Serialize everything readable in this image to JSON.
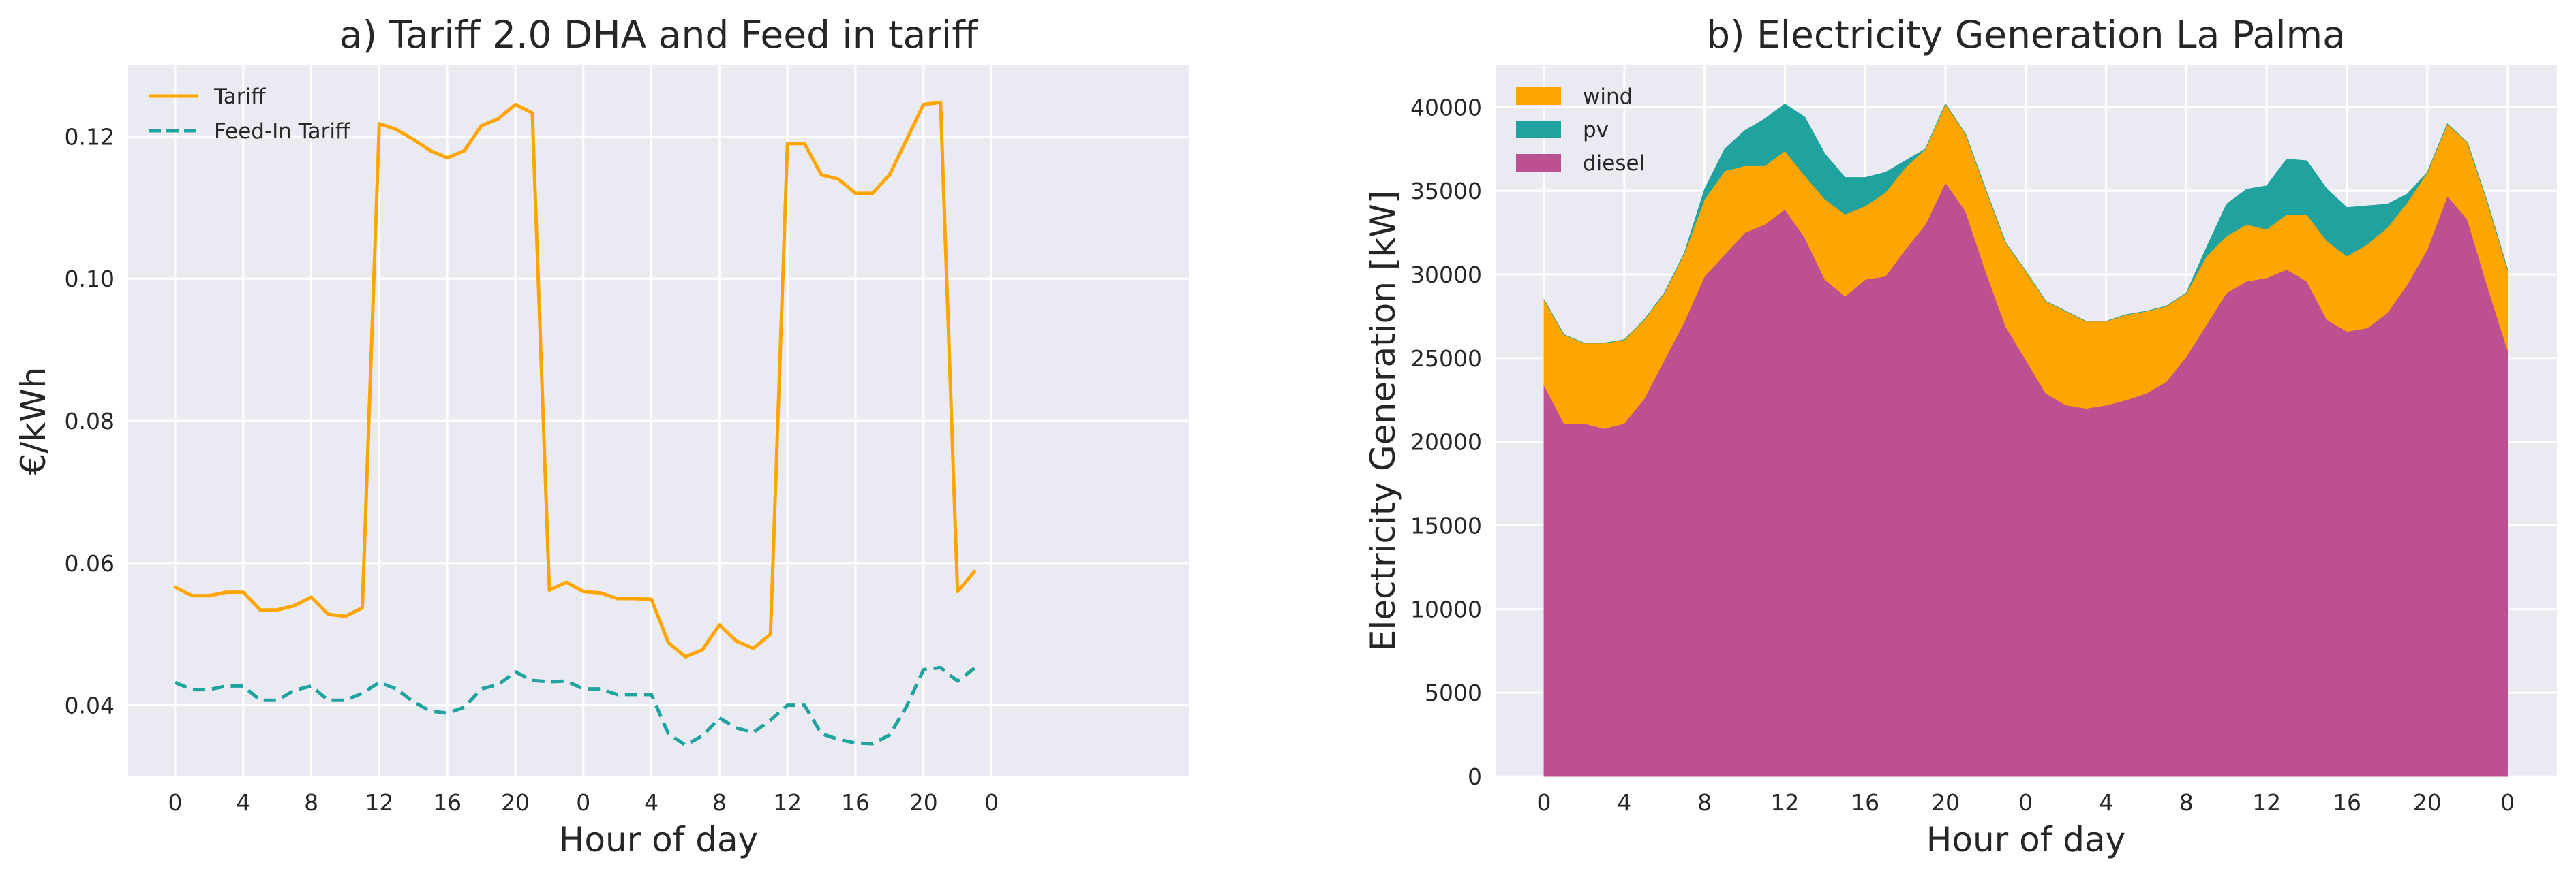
{
  "chart_data": [
    {
      "type": "line",
      "title": "a) Tariff 2.0 DHA and Feed in tariff",
      "xlabel": "Hour of day",
      "ylabel": "€/kWh",
      "xticks": [
        "0",
        "4",
        "8",
        "12",
        "16",
        "20",
        "0",
        "4",
        "8",
        "12",
        "16",
        "20",
        "0"
      ],
      "ylim": [
        0.03,
        0.13
      ],
      "yticks": [
        "0.04",
        "0.06",
        "0.08",
        "0.10",
        "0.12"
      ],
      "legend_position": "top-left",
      "series": [
        {
          "name": "Tariff",
          "color": "#FFA500",
          "style": "solid",
          "values": [
            0.0566,
            0.0554,
            0.0554,
            0.0559,
            0.0559,
            0.0534,
            0.0534,
            0.054,
            0.0552,
            0.0528,
            0.0525,
            0.0537,
            0.1218,
            0.121,
            0.1196,
            0.118,
            0.117,
            0.118,
            0.1215,
            0.1225,
            0.1245,
            0.1233,
            0.0562,
            0.0573,
            0.056,
            0.0558,
            0.055,
            0.055,
            0.0549,
            0.0488,
            0.0468,
            0.0478,
            0.0513,
            0.049,
            0.048,
            0.05,
            0.119,
            0.119,
            0.1146,
            0.114,
            0.112,
            0.112,
            0.1146,
            0.1195,
            0.1245,
            0.1248,
            0.056,
            0.0588
          ]
        },
        {
          "name": "Feed-In Tariff",
          "color": "#20A39E",
          "style": "dashed",
          "values": [
            0.0432,
            0.0422,
            0.0422,
            0.0427,
            0.0427,
            0.0407,
            0.0407,
            0.0421,
            0.0427,
            0.0407,
            0.0407,
            0.0417,
            0.0432,
            0.0423,
            0.0405,
            0.0392,
            0.0389,
            0.0397,
            0.0423,
            0.0429,
            0.0447,
            0.0435,
            0.0433,
            0.0434,
            0.0423,
            0.0423,
            0.0415,
            0.0415,
            0.0415,
            0.036,
            0.0344,
            0.0357,
            0.0382,
            0.0368,
            0.0362,
            0.0379,
            0.04,
            0.04,
            0.036,
            0.0352,
            0.0347,
            0.0346,
            0.0358,
            0.0398,
            0.045,
            0.0453,
            0.0434,
            0.0452
          ]
        }
      ]
    },
    {
      "type": "area",
      "stacked": true,
      "title": "b) Electricity Generation La Palma",
      "xlabel": "Hour of day",
      "ylabel": "Electricity Generation [kW]",
      "xticks": [
        "0",
        "4",
        "8",
        "12",
        "16",
        "20",
        "0",
        "4",
        "8",
        "12",
        "16",
        "20",
        "0"
      ],
      "ylim": [
        0,
        42500
      ],
      "yticks": [
        "0",
        "5000",
        "10000",
        "15000",
        "20000",
        "25000",
        "30000",
        "35000",
        "40000"
      ],
      "legend_position": "top-left",
      "legend_order": [
        "wind",
        "pv",
        "diesel"
      ],
      "series": [
        {
          "name": "diesel",
          "color": "#BC5090",
          "values": [
            23400,
            21100,
            21100,
            20800,
            21100,
            22600,
            24900,
            27200,
            29900,
            31200,
            32500,
            33000,
            33900,
            32200,
            29700,
            28700,
            29700,
            29900,
            31500,
            33000,
            35500,
            33800,
            30200,
            26900,
            24900,
            22900,
            22200,
            22000,
            22200,
            22500,
            22900,
            23600,
            25100,
            27000,
            28900,
            29600,
            29800,
            30300,
            29600,
            27300,
            26600,
            26800,
            27700,
            29400,
            31500,
            34700,
            33300,
            29300,
            25500
          ]
        },
        {
          "name": "wind",
          "color": "#FFA500",
          "values": [
            5100,
            5300,
            4800,
            5100,
            5000,
            4700,
            4000,
            4100,
            4600,
            5000,
            4000,
            3500,
            3500,
            3700,
            4800,
            4900,
            4400,
            5000,
            4900,
            4500,
            4700,
            4600,
            4900,
            5000,
            5300,
            5500,
            5600,
            5200,
            5000,
            5100,
            4900,
            4500,
            3800,
            4100,
            3400,
            3400,
            2900,
            3300,
            4000,
            4700,
            4500,
            5000,
            5100,
            4900,
            4600,
            4300,
            4600,
            5000,
            4800
          ]
        },
        {
          "name": "pv",
          "color": "#20A39E",
          "values": [
            0,
            0,
            0,
            0,
            0,
            0,
            0,
            0,
            600,
            1300,
            2100,
            2800,
            2800,
            3500,
            2700,
            2200,
            1700,
            1200,
            400,
            0,
            0,
            0,
            0,
            0,
            0,
            0,
            0,
            0,
            0,
            0,
            0,
            0,
            0,
            500,
            1900,
            2100,
            2600,
            3300,
            3200,
            3100,
            2900,
            2300,
            1400,
            500,
            0,
            0,
            0,
            0,
            0
          ]
        }
      ]
    }
  ]
}
